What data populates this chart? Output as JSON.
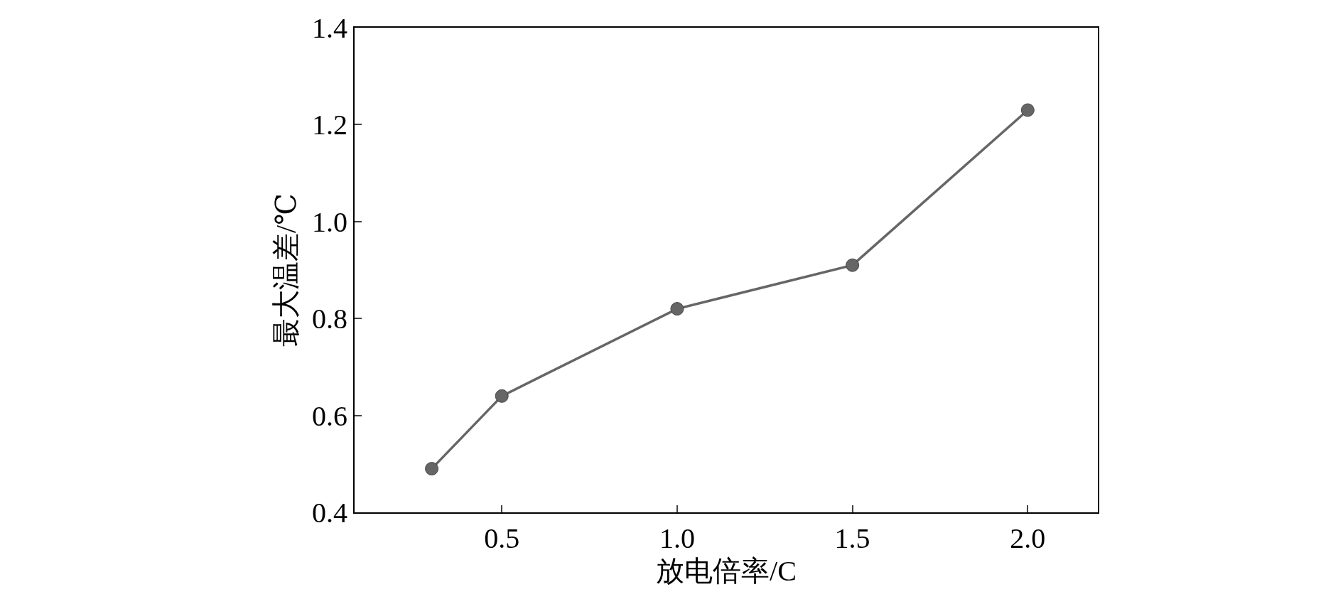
{
  "chart_data": {
    "type": "line",
    "xlabel": "放电倍率/C",
    "ylabel": "最大温差/℃",
    "x": [
      0.3,
      0.5,
      1.0,
      1.5,
      2.0
    ],
    "series": [
      {
        "color": "#666666",
        "values": [
          0.49,
          0.64,
          0.82,
          0.91,
          1.23
        ]
      }
    ],
    "xlim": [
      0.08,
      2.2
    ],
    "xticks": [
      {
        "value": 0.5,
        "label": "0.5"
      },
      {
        "value": 1,
        "label": "1.0"
      },
      {
        "value": 1.5,
        "label": "1.5"
      },
      {
        "value": 2,
        "label": "2.0"
      }
    ],
    "ylim": [
      0.4,
      1.4
    ],
    "yticks": [
      {
        "value": 0.4,
        "label": "0.4"
      },
      {
        "value": 0.6,
        "label": "0.6"
      },
      {
        "value": 0.8,
        "label": "0.8"
      },
      {
        "value": 1,
        "label": "1.0"
      },
      {
        "value": 1.2,
        "label": "1.2"
      },
      {
        "value": 1.4,
        "label": "1.4"
      }
    ],
    "marker": "circle",
    "line_style": "solid"
  }
}
